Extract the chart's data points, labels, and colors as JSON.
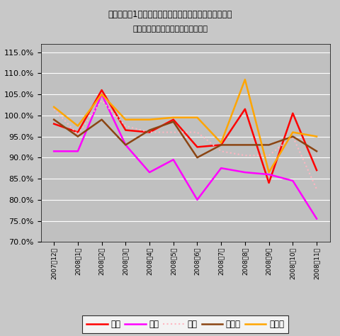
{
  "title_line1": "電通の過去1年間における業務別売上高前年同月比推移",
  "title_line2": "（全社及び四大既存メディアのみ）",
  "x_labels": [
    "2007年12月",
    "2008年1月",
    "2008年2月",
    "2008年3月",
    "2008年4月",
    "2008年5月",
    "2008年6月",
    "2008年7月",
    "2008年8月",
    "2008年9月",
    "2008年10月",
    "2008年11月"
  ],
  "series": {
    "全社": [
      98.0,
      96.0,
      106.0,
      96.5,
      96.0,
      99.0,
      92.5,
      93.0,
      101.5,
      84.0,
      100.5,
      87.0
    ],
    "新聞": [
      91.5,
      91.5,
      105.0,
      93.0,
      86.5,
      89.5,
      80.0,
      87.5,
      86.5,
      86.0,
      84.5,
      75.5
    ],
    "雑誌": [
      101.5,
      95.5,
      103.5,
      97.5,
      96.0,
      96.0,
      96.0,
      91.5,
      90.5,
      90.5,
      95.0,
      82.5
    ],
    "ラジオ": [
      99.0,
      95.0,
      99.0,
      93.0,
      96.5,
      98.5,
      90.0,
      93.0,
      93.0,
      93.0,
      95.0,
      91.5
    ],
    "テレビ": [
      102.0,
      97.5,
      105.0,
      99.0,
      99.0,
      99.5,
      99.5,
      93.5,
      108.5,
      86.5,
      96.0,
      95.0
    ]
  },
  "colors": {
    "全社": "#FF0000",
    "新聞": "#FF00FF",
    "雑誌": "#FFB6C1",
    "ラジオ": "#8B4513",
    "テレビ": "#FFA500"
  },
  "linestyles": {
    "全社": "solid",
    "新聞": "solid",
    "雑誌": "dotted",
    "ラジオ": "solid",
    "テレビ": "solid"
  },
  "linewidths": {
    "全社": 1.8,
    "新聞": 1.8,
    "雑誌": 1.5,
    "ラジオ": 1.8,
    "テレビ": 1.8
  },
  "ylim": [
    70.0,
    117.0
  ],
  "yticks": [
    70.0,
    75.0,
    80.0,
    85.0,
    90.0,
    95.0,
    100.0,
    105.0,
    110.0,
    115.0
  ],
  "plot_bg_color": "#C0C0C0",
  "fig_bg_color": "#C8C8C8",
  "title_fontsize": 8.5,
  "subtitle_fontsize": 8.0,
  "ytick_fontsize": 8,
  "xtick_fontsize": 6.5,
  "legend_fontsize": 8.5
}
